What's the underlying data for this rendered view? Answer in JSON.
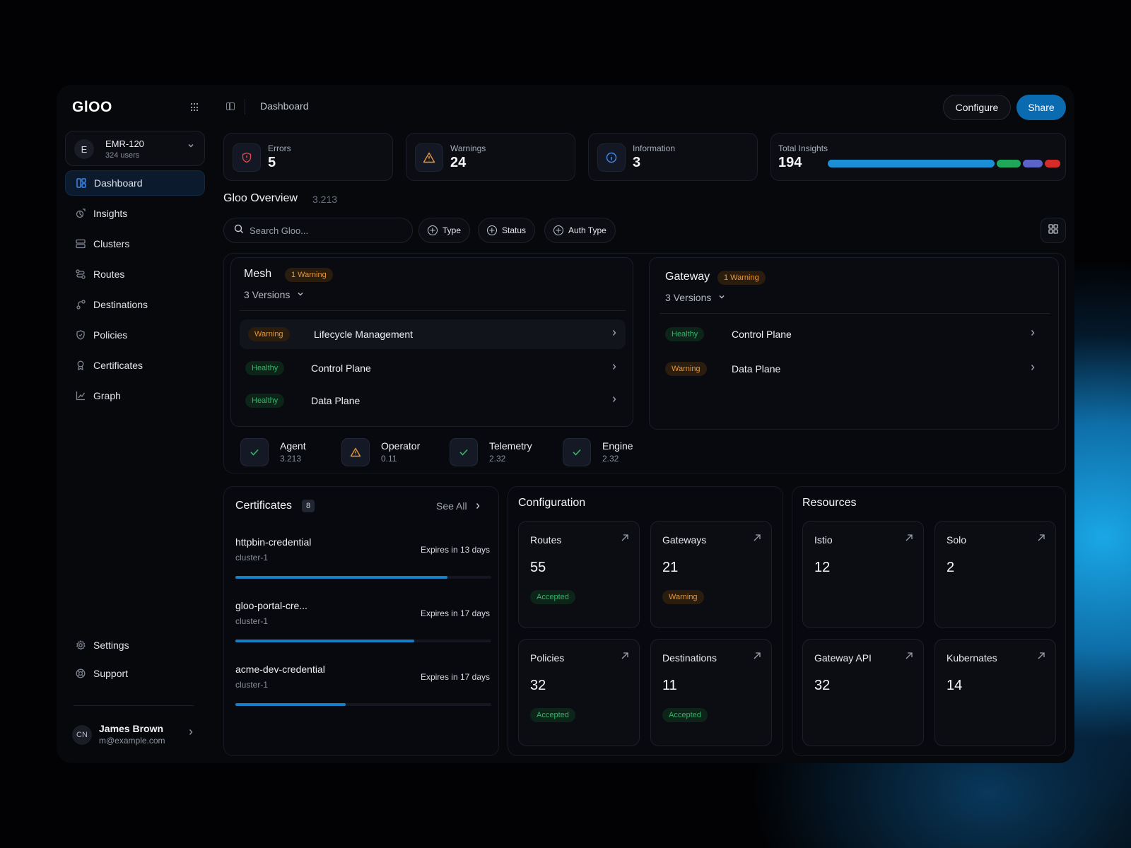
{
  "brand": {
    "logo": "GlOO"
  },
  "org": {
    "initial": "E",
    "name": "EMR-120",
    "users": "324 users"
  },
  "nav": {
    "items": [
      {
        "label": "Dashboard",
        "icon": "layout-icon"
      },
      {
        "label": "Insights",
        "icon": "insights-icon"
      },
      {
        "label": "Clusters",
        "icon": "clusters-icon"
      },
      {
        "label": "Routes",
        "icon": "routes-icon"
      },
      {
        "label": "Destinations",
        "icon": "destinations-icon"
      },
      {
        "label": "Policies",
        "icon": "shield-icon"
      },
      {
        "label": "Certificates",
        "icon": "award-icon"
      },
      {
        "label": "Graph",
        "icon": "chart-icon"
      }
    ],
    "bottom": [
      {
        "label": "Settings",
        "icon": "gear-icon"
      },
      {
        "label": "Support",
        "icon": "lifebuoy-icon"
      }
    ]
  },
  "user": {
    "initials": "CN",
    "name": "James Brown",
    "email": "m@example.com"
  },
  "header": {
    "breadcrumb": "Dashboard",
    "configure_label": "Configure",
    "share_label": "Share"
  },
  "stats": {
    "errors": {
      "label": "Errors",
      "value": "5"
    },
    "warnings": {
      "label": "Warnings",
      "value": "24"
    },
    "information": {
      "label": "Information",
      "value": "3"
    },
    "total": {
      "label": "Total Insights",
      "value": "194"
    }
  },
  "overview": {
    "title": "Gloo Overview",
    "version": "3.213",
    "search_placeholder": "Search Gloo...",
    "filters": [
      "Type",
      "Status",
      "Auth Type"
    ]
  },
  "mesh": {
    "title": "Mesh",
    "badge": "1 Warning",
    "versions": "3 Versions",
    "rows": [
      {
        "status": "Warning",
        "label": "Lifecycle Management"
      },
      {
        "status": "Healthy",
        "label": "Control Plane"
      },
      {
        "status": "Healthy",
        "label": "Data Plane"
      }
    ]
  },
  "gateway": {
    "title": "Gateway",
    "badge": "1 Warning",
    "versions": "3 Versions",
    "rows": [
      {
        "status": "Healthy",
        "label": "Control Plane"
      },
      {
        "status": "Warning",
        "label": "Data Plane"
      }
    ]
  },
  "components": [
    {
      "name": "Agent",
      "version": "3.213",
      "status": "ok"
    },
    {
      "name": "Operator",
      "version": "0.11",
      "status": "warning"
    },
    {
      "name": "Telemetry",
      "version": "2.32",
      "status": "ok"
    },
    {
      "name": "Engine",
      "version": "2.32",
      "status": "ok"
    }
  ],
  "certificates": {
    "title": "Certificates",
    "count": "8",
    "see_all": "See All",
    "items": [
      {
        "name": "httpbin-credential",
        "cluster": "cluster-1",
        "expires": "Expires in 13 days",
        "progress": 0.83
      },
      {
        "name": "gloo-portal-cre...",
        "cluster": "cluster-1",
        "expires": "Expires in 17 days",
        "progress": 0.7
      },
      {
        "name": "acme-dev-credential",
        "cluster": "cluster-1",
        "expires": "Expires in 17 days",
        "progress": 0.43
      }
    ]
  },
  "configuration": {
    "title": "Configuration",
    "tiles": [
      {
        "name": "Routes",
        "value": "55",
        "status": "Accepted"
      },
      {
        "name": "Gateways",
        "value": "21",
        "status": "Warning"
      },
      {
        "name": "Policies",
        "value": "32",
        "status": "Accepted"
      },
      {
        "name": "Destinations",
        "value": "11",
        "status": "Accepted"
      }
    ]
  },
  "resources": {
    "title": "Resources",
    "tiles": [
      {
        "name": "Istio",
        "value": "12"
      },
      {
        "name": "Solo",
        "value": "2"
      },
      {
        "name": "Gateway API",
        "value": "32"
      },
      {
        "name": "Kubernates",
        "value": "14"
      }
    ]
  },
  "colors": {
    "accent": "#0a6bb1",
    "warning": "#e5973a",
    "healthy": "#37b26c",
    "error": "#e04848",
    "bar_segments": [
      "#1a8fd6",
      "#1fa85a",
      "#5b63c9",
      "#d62b2b"
    ]
  }
}
